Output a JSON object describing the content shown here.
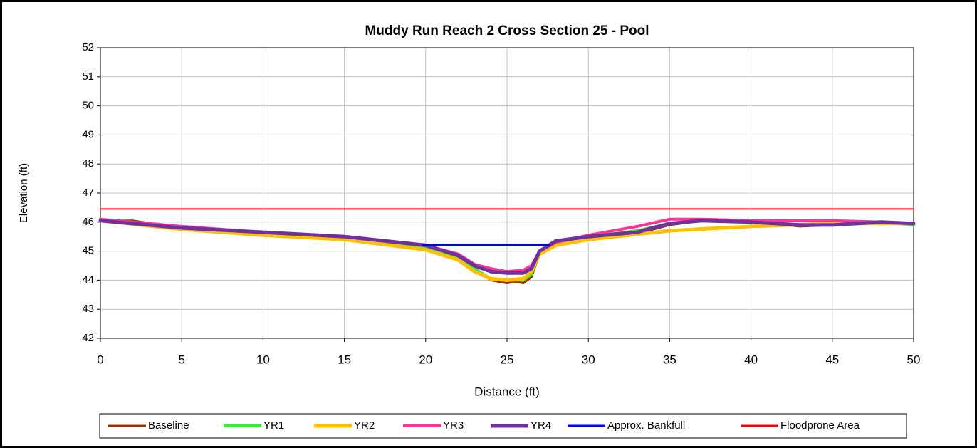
{
  "chart_data": {
    "type": "line",
    "title": "Muddy Run Reach 2 Cross Section 25 - Pool",
    "x_label": "Distance (ft)",
    "y_label": "Elevation (ft)",
    "xlim": [
      0,
      50
    ],
    "xticks": [
      0,
      5,
      10,
      15,
      20,
      25,
      30,
      35,
      40,
      45,
      50
    ],
    "ylim": [
      42,
      52
    ],
    "yticks": [
      42,
      43,
      44,
      45,
      46,
      47,
      48,
      49,
      50,
      51,
      52
    ],
    "grid": true,
    "legend": "bottom",
    "series": [
      {
        "name": "Baseline",
        "color": "#993300",
        "x": [
          0,
          2,
          5,
          8,
          10,
          13,
          15,
          18,
          20,
          22,
          23,
          24,
          25,
          25.5,
          26,
          26.5,
          27,
          28,
          30,
          33,
          35,
          37,
          40,
          43,
          45,
          48,
          50
        ],
        "values": [
          46.05,
          46.05,
          45.8,
          45.65,
          45.6,
          45.55,
          45.5,
          45.3,
          45.1,
          44.8,
          44.4,
          44.0,
          43.9,
          43.95,
          43.9,
          44.1,
          44.9,
          45.3,
          45.5,
          45.6,
          45.9,
          46.05,
          46.0,
          45.85,
          45.9,
          46.0,
          45.95
        ]
      },
      {
        "name": "YR1",
        "color": "#33ee33",
        "x": [
          0,
          5,
          10,
          15,
          20,
          22,
          23,
          24,
          25,
          26,
          26.5,
          27,
          28,
          30,
          33,
          35,
          37,
          40,
          43,
          45,
          48,
          50
        ],
        "values": [
          46.05,
          45.75,
          45.55,
          45.45,
          45.1,
          44.8,
          44.4,
          44.05,
          44.0,
          44.0,
          44.2,
          44.9,
          45.3,
          45.5,
          45.7,
          45.95,
          46.05,
          46.0,
          45.9,
          45.95,
          46.0,
          45.9
        ]
      },
      {
        "name": "YR2",
        "color": "#ffc000",
        "x": [
          0,
          5,
          10,
          15,
          20,
          22,
          23,
          24,
          25,
          26,
          26.5,
          27,
          28,
          30,
          35,
          40,
          45,
          50
        ],
        "values": [
          46.05,
          45.75,
          45.55,
          45.4,
          45.05,
          44.7,
          44.3,
          44.05,
          44.0,
          44.05,
          44.3,
          44.9,
          45.2,
          45.4,
          45.7,
          45.85,
          45.95,
          45.95
        ]
      },
      {
        "name": "YR3",
        "color": "#ff3399",
        "x": [
          0,
          5,
          10,
          15,
          20,
          22,
          23,
          24,
          25,
          26,
          26.5,
          27,
          28,
          30,
          33,
          35,
          37,
          40,
          45,
          48,
          50
        ],
        "values": [
          46.1,
          45.85,
          45.65,
          45.5,
          45.2,
          44.9,
          44.55,
          44.4,
          44.3,
          44.35,
          44.5,
          45.0,
          45.3,
          45.55,
          45.85,
          46.1,
          46.1,
          46.05,
          46.05,
          46.0,
          45.95
        ]
      },
      {
        "name": "YR4",
        "color": "#7030a0",
        "x": [
          0,
          5,
          10,
          15,
          20,
          22,
          23,
          24,
          25,
          26,
          26.5,
          27,
          28,
          30,
          33,
          35,
          37,
          40,
          43,
          45,
          48,
          50
        ],
        "values": [
          46.05,
          45.8,
          45.65,
          45.5,
          45.2,
          44.85,
          44.5,
          44.3,
          44.25,
          44.25,
          44.4,
          45.0,
          45.35,
          45.5,
          45.65,
          45.95,
          46.05,
          46.0,
          45.9,
          45.9,
          46.0,
          45.95
        ]
      },
      {
        "name": "Approx. Bankfull",
        "color": "#0000ff",
        "x": [
          19.8,
          27.6
        ],
        "values": [
          45.2,
          45.2
        ]
      },
      {
        "name": "Floodprone Area",
        "color": "#ff0000",
        "x": [
          0,
          50
        ],
        "values": [
          46.45,
          46.45
        ]
      }
    ]
  }
}
